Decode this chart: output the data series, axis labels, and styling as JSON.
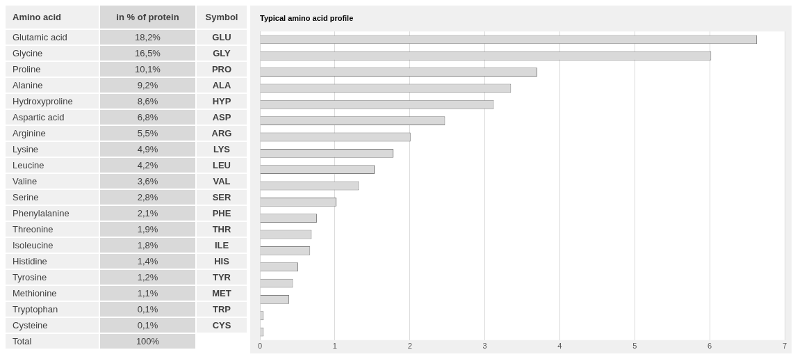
{
  "chart_data": [
    {
      "type": "heatmap",
      "ylabel": "Amino acid",
      "y2label": "Symbol",
      "categories": [
        "in % of protein"
      ],
      "y_categories": [
        "Glutamic acid",
        "Glycine",
        "Proline",
        "Alanine",
        "Hydroxyproline",
        "Aspartic acid",
        "Arginine",
        "Lysine",
        "Leucine",
        "Valine",
        "Serine",
        "Phenylalanine",
        "Threonine",
        "Isoleucine",
        "Histidine",
        "Tyrosine",
        "Methionine",
        "Tryptophan",
        "Cysteine",
        "Total"
      ],
      "y2_categories": [
        "GLU",
        "GLY",
        "PRO",
        "ALA",
        "HYP",
        "ASP",
        "ARG",
        "LYS",
        "LEU",
        "VAL",
        "SER",
        "PHE",
        "THR",
        "ILE",
        "HIS",
        "TYR",
        "MET",
        "TRP",
        "CYS",
        null
      ],
      "cells": [
        [
          18.2
        ],
        [
          16.5
        ],
        [
          10.1
        ],
        [
          9.2
        ],
        [
          8.6
        ],
        [
          6.8
        ],
        [
          5.5
        ],
        [
          4.9
        ],
        [
          4.2
        ],
        [
          3.6
        ],
        [
          2.8
        ],
        [
          2.1
        ],
        [
          1.9
        ],
        [
          1.8
        ],
        [
          1.4
        ],
        [
          1.2
        ],
        [
          1.1
        ],
        [
          0.1
        ],
        [
          0.1
        ],
        [
          100
        ]
      ],
      "cell_labels": [
        [
          "18,2%"
        ],
        [
          "16,5%"
        ],
        [
          "10,1%"
        ],
        [
          "9,2%"
        ],
        [
          "8,6%"
        ],
        [
          "6,8%"
        ],
        [
          "5,5%"
        ],
        [
          "4,9%"
        ],
        [
          "4,2%"
        ],
        [
          "3,6%"
        ],
        [
          "2,8%"
        ],
        [
          "2,1%"
        ],
        [
          "1,9%"
        ],
        [
          "1,8%"
        ],
        [
          "1,4%"
        ],
        [
          "1,2%"
        ],
        [
          "1,1%"
        ],
        [
          "0,1%"
        ],
        [
          "0,1%"
        ],
        [
          "100%"
        ]
      ]
    },
    {
      "type": "bar",
      "orientation": "horizontal",
      "title": "Typical amino acid profile",
      "categories": [
        null,
        null,
        null,
        null,
        null,
        null,
        null,
        null,
        null,
        null,
        null,
        null,
        null,
        null,
        null,
        null,
        null,
        null,
        null
      ],
      "values": [
        6.63,
        6.02,
        3.7,
        3.35,
        3.12,
        2.47,
        2.01,
        1.78,
        1.53,
        1.32,
        1.02,
        0.76,
        0.69,
        0.67,
        0.51,
        0.44,
        0.39,
        0.05,
        0.05
      ],
      "color": "#d9d9d9",
      "xlim": [
        0,
        7
      ],
      "xticks": [
        0,
        1,
        2,
        3,
        4,
        5,
        6,
        7
      ],
      "grid": "x",
      "tick_labels": "x"
    }
  ]
}
